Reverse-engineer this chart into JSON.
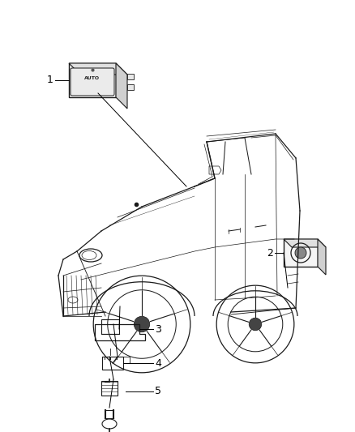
{
  "background_color": "#ffffff",
  "fig_width": 4.38,
  "fig_height": 5.33,
  "dpi": 100,
  "car_color": "#1a1a1a",
  "line_color": "#000000",
  "text_color": "#000000",
  "part_label_fontsize": 9,
  "lw_body": 0.9,
  "lw_thin": 0.5
}
